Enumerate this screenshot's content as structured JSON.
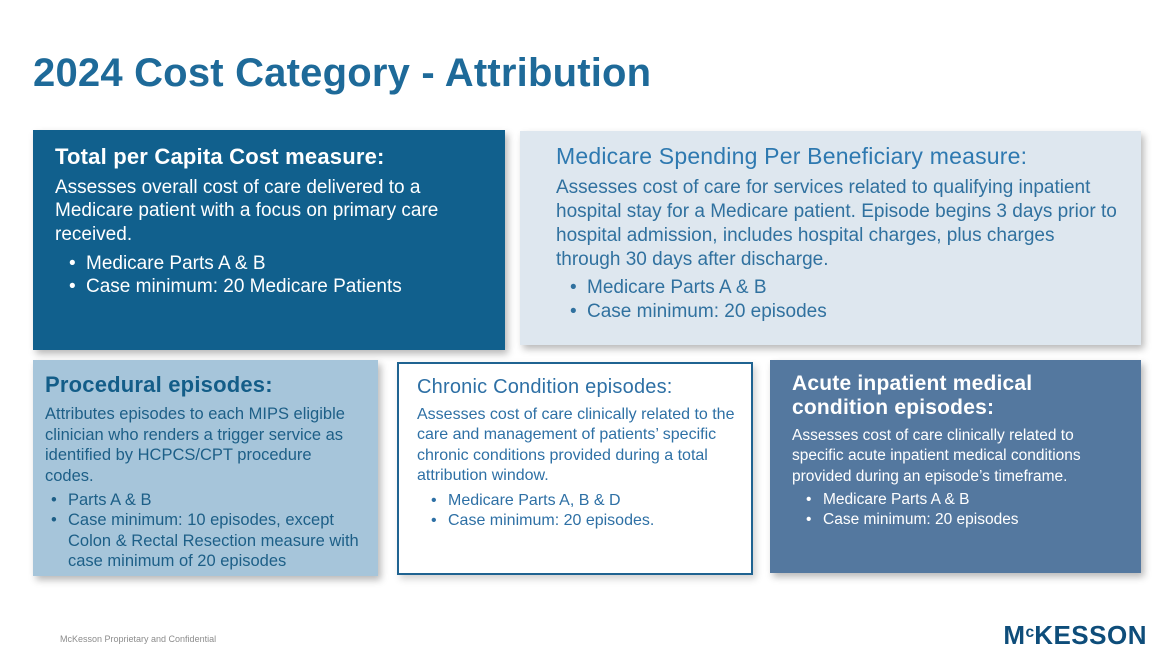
{
  "slide": {
    "title": "2024 Cost Category - Attribution",
    "footer": "McKesson Proprietary and Confidential",
    "logo": {
      "m": "M",
      "c": "c",
      "rest": "KESSON"
    }
  },
  "colors": {
    "title_blue": "#1E6A99",
    "dark_box_blue": "#11608D",
    "light_panel_blue": "#DEE7EF",
    "mid_panel_blue": "#A6C5DA",
    "steel_box_blue": "#54789F",
    "outline_blue": "#1F6391",
    "logo_navy": "#0E4D7A"
  },
  "boxes": [
    {
      "id": "total-per-capita",
      "heading": "Total per Capita Cost measure:",
      "body": "Assesses overall cost of care delivered to a Medicare patient with a focus on primary care received.",
      "bullets": [
        "Medicare Parts A & B",
        "Case minimum: 20 Medicare Patients"
      ]
    },
    {
      "id": "medicare-spending-per-beneficiary",
      "heading": "Medicare Spending Per Beneficiary measure:",
      "body": "Assesses cost of care for services related to qualifying inpatient hospital stay for a Medicare patient. Episode begins 3 days prior to hospital admission, includes hospital charges, plus charges through 30 days after discharge.",
      "bullets": [
        "Medicare Parts A & B",
        "Case minimum:  20 episodes"
      ]
    },
    {
      "id": "procedural-episodes",
      "heading": "Procedural episodes:",
      "body": "Attributes episodes to each MIPS eligible clinician who renders a trigger service as identified by HCPCS/CPT procedure codes.",
      "bullets": [
        "Parts A & B",
        "Case minimum: 10 episodes, except Colon & Rectal Resection measure with case minimum of 20 episodes"
      ]
    },
    {
      "id": "chronic-condition-episodes",
      "heading": "Chronic Condition episodes:",
      "body": "Assesses cost of care clinically related to the care and management of patients’ specific chronic conditions provided during a total attribution window.",
      "bullets": [
        "Medicare Parts A, B & D",
        "Case minimum: 20 episodes."
      ]
    },
    {
      "id": "acute-inpatient-episodes",
      "heading": "Acute inpatient medical condition episodes:",
      "body": "Assesses cost of care clinically related to specific acute inpatient medical conditions provided during an episode’s timeframe.",
      "bullets": [
        "Medicare Parts A & B",
        "Case minimum: 20 episodes"
      ]
    }
  ]
}
